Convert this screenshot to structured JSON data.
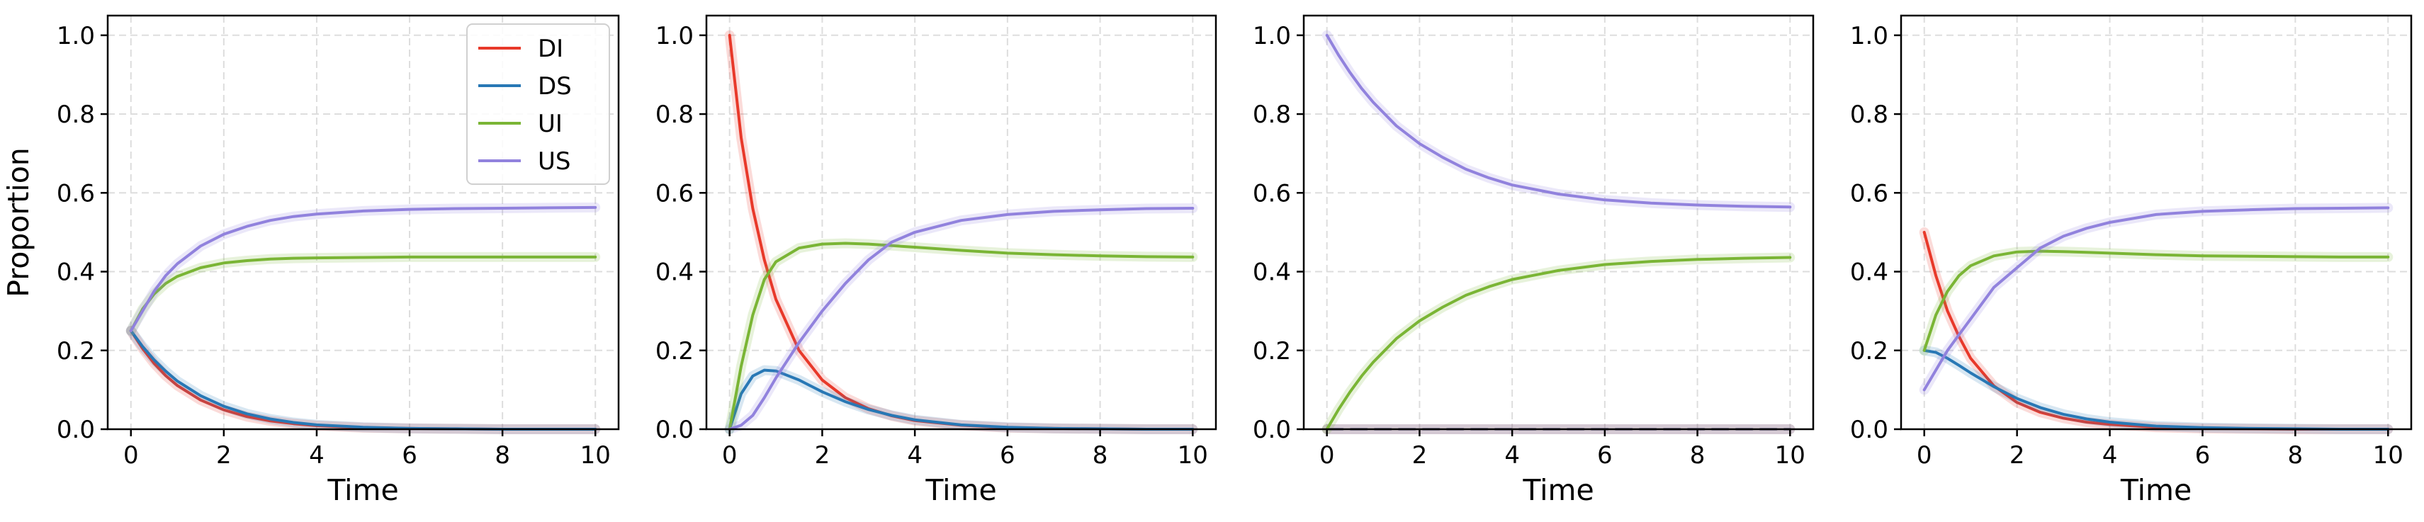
{
  "chart_data": [
    {
      "type": "line",
      "xlabel": "Time",
      "ylabel": "Proportion",
      "xlim": [
        -0.5,
        10.5
      ],
      "ylim": [
        0,
        1.05
      ],
      "xticks": [
        0,
        2,
        4,
        6,
        8,
        10
      ],
      "xtick_labels": [
        "0",
        "2",
        "4",
        "6",
        "8",
        "10"
      ],
      "yticks": [
        0.0,
        0.2,
        0.4,
        0.6,
        0.8,
        1.0
      ],
      "ytick_labels": [
        "0.0",
        "0.2",
        "0.4",
        "0.6",
        "0.8",
        "1.0"
      ],
      "grid": true,
      "legend": {
        "placement": "top-right",
        "entries": [
          "DI",
          "DS",
          "UI",
          "US"
        ]
      },
      "x": [
        0,
        0.25,
        0.5,
        0.75,
        1,
        1.5,
        2,
        2.5,
        3,
        3.5,
        4,
        5,
        6,
        7,
        8,
        9,
        10
      ],
      "series": [
        {
          "name": "DI",
          "color": "#e8392a",
          "values": [
            0.25,
            0.205,
            0.167,
            0.136,
            0.111,
            0.074,
            0.049,
            0.032,
            0.021,
            0.014,
            0.009,
            0.004,
            0.002,
            0.001,
            0.0,
            0.0,
            0.0
          ]
        },
        {
          "name": "DS",
          "color": "#2878b5",
          "values": [
            0.25,
            0.21,
            0.176,
            0.147,
            0.122,
            0.085,
            0.058,
            0.039,
            0.026,
            0.017,
            0.011,
            0.005,
            0.002,
            0.001,
            0.0,
            0.0,
            0.0
          ]
        },
        {
          "name": "UI",
          "color": "#7ab535",
          "values": [
            0.25,
            0.305,
            0.343,
            0.37,
            0.388,
            0.41,
            0.422,
            0.428,
            0.432,
            0.434,
            0.435,
            0.436,
            0.437,
            0.437,
            0.437,
            0.437,
            0.437
          ]
        },
        {
          "name": "US",
          "color": "#9182dd",
          "values": [
            0.25,
            0.3,
            0.35,
            0.39,
            0.42,
            0.465,
            0.495,
            0.515,
            0.53,
            0.54,
            0.546,
            0.554,
            0.558,
            0.56,
            0.561,
            0.562,
            0.563
          ]
        }
      ]
    },
    {
      "type": "line",
      "xlabel": "Time",
      "ylabel": "",
      "xlim": [
        -0.5,
        10.5
      ],
      "ylim": [
        0,
        1.05
      ],
      "xticks": [
        0,
        2,
        4,
        6,
        8,
        10
      ],
      "xtick_labels": [
        "0",
        "2",
        "4",
        "6",
        "8",
        "10"
      ],
      "yticks": [
        0.0,
        0.2,
        0.4,
        0.6,
        0.8,
        1.0
      ],
      "ytick_labels": [
        "0.0",
        "0.2",
        "0.4",
        "0.6",
        "0.8",
        "1.0"
      ],
      "grid": true,
      "x": [
        0,
        0.25,
        0.5,
        0.75,
        1,
        1.5,
        2,
        2.5,
        3,
        3.5,
        4,
        5,
        6,
        7,
        8,
        9,
        10
      ],
      "series": [
        {
          "name": "DI",
          "color": "#e8392a",
          "values": [
            1.0,
            0.74,
            0.56,
            0.43,
            0.33,
            0.2,
            0.125,
            0.08,
            0.052,
            0.034,
            0.022,
            0.01,
            0.004,
            0.002,
            0.001,
            0.0,
            0.0
          ]
        },
        {
          "name": "DS",
          "color": "#2878b5",
          "values": [
            0.0,
            0.09,
            0.135,
            0.15,
            0.148,
            0.125,
            0.095,
            0.07,
            0.05,
            0.035,
            0.024,
            0.011,
            0.005,
            0.002,
            0.001,
            0.0,
            0.0
          ]
        },
        {
          "name": "UI",
          "color": "#7ab535",
          "values": [
            0.0,
            0.16,
            0.29,
            0.38,
            0.425,
            0.46,
            0.47,
            0.472,
            0.47,
            0.466,
            0.462,
            0.454,
            0.447,
            0.443,
            0.44,
            0.438,
            0.437
          ]
        },
        {
          "name": "US",
          "color": "#9182dd",
          "values": [
            0.0,
            0.01,
            0.035,
            0.08,
            0.13,
            0.22,
            0.3,
            0.37,
            0.43,
            0.475,
            0.5,
            0.53,
            0.545,
            0.553,
            0.557,
            0.56,
            0.561
          ]
        }
      ]
    },
    {
      "type": "line",
      "xlabel": "Time",
      "ylabel": "",
      "xlim": [
        -0.5,
        10.5
      ],
      "ylim": [
        0,
        1.05
      ],
      "xticks": [
        0,
        2,
        4,
        6,
        8,
        10
      ],
      "xtick_labels": [
        "0",
        "2",
        "4",
        "6",
        "8",
        "10"
      ],
      "yticks": [
        0.0,
        0.2,
        0.4,
        0.6,
        0.8,
        1.0
      ],
      "ytick_labels": [
        "0.0",
        "0.2",
        "0.4",
        "0.6",
        "0.8",
        "1.0"
      ],
      "grid": true,
      "x": [
        0,
        0.25,
        0.5,
        0.75,
        1,
        1.5,
        2,
        2.5,
        3,
        3.5,
        4,
        5,
        6,
        7,
        8,
        9,
        10
      ],
      "series": [
        {
          "name": "DI",
          "color": "#e8392a",
          "values": [
            0.0,
            0.0,
            0.0,
            0.0,
            0.0,
            0.0,
            0.0,
            0.0,
            0.0,
            0.0,
            0.0,
            0.0,
            0.0,
            0.0,
            0.0,
            0.0,
            0.0
          ]
        },
        {
          "name": "DS",
          "color": "#2878b5",
          "values": [
            0.0,
            0.0,
            0.0,
            0.0,
            0.0,
            0.0,
            0.0,
            0.0,
            0.0,
            0.0,
            0.0,
            0.0,
            0.0,
            0.0,
            0.0,
            0.0,
            0.0
          ]
        },
        {
          "name": "UI",
          "color": "#7ab535",
          "values": [
            0.0,
            0.05,
            0.095,
            0.135,
            0.17,
            0.23,
            0.275,
            0.31,
            0.34,
            0.362,
            0.38,
            0.403,
            0.418,
            0.426,
            0.431,
            0.434,
            0.436
          ]
        },
        {
          "name": "US",
          "color": "#9182dd",
          "values": [
            1.0,
            0.95,
            0.905,
            0.865,
            0.83,
            0.77,
            0.725,
            0.69,
            0.66,
            0.638,
            0.62,
            0.597,
            0.582,
            0.574,
            0.569,
            0.566,
            0.564
          ]
        }
      ]
    },
    {
      "type": "line",
      "xlabel": "Time",
      "ylabel": "",
      "xlim": [
        -0.5,
        10.5
      ],
      "ylim": [
        0,
        1.05
      ],
      "xticks": [
        0,
        2,
        4,
        6,
        8,
        10
      ],
      "xtick_labels": [
        "0",
        "2",
        "4",
        "6",
        "8",
        "10"
      ],
      "yticks": [
        0.0,
        0.2,
        0.4,
        0.6,
        0.8,
        1.0
      ],
      "ytick_labels": [
        "0.0",
        "0.2",
        "0.4",
        "0.6",
        "0.8",
        "1.0"
      ],
      "grid": true,
      "x": [
        0,
        0.25,
        0.5,
        0.75,
        1,
        1.5,
        2,
        2.5,
        3,
        3.5,
        4,
        5,
        6,
        7,
        8,
        9,
        10
      ],
      "series": [
        {
          "name": "DI",
          "color": "#e8392a",
          "values": [
            0.5,
            0.39,
            0.3,
            0.235,
            0.18,
            0.11,
            0.068,
            0.043,
            0.028,
            0.018,
            0.012,
            0.005,
            0.002,
            0.001,
            0.0,
            0.0,
            0.0
          ]
        },
        {
          "name": "DS",
          "color": "#2878b5",
          "values": [
            0.2,
            0.195,
            0.18,
            0.162,
            0.143,
            0.108,
            0.078,
            0.055,
            0.038,
            0.026,
            0.018,
            0.008,
            0.004,
            0.002,
            0.001,
            0.0,
            0.0
          ]
        },
        {
          "name": "UI",
          "color": "#7ab535",
          "values": [
            0.2,
            0.29,
            0.35,
            0.39,
            0.415,
            0.44,
            0.45,
            0.452,
            0.451,
            0.449,
            0.447,
            0.443,
            0.44,
            0.439,
            0.438,
            0.437,
            0.437
          ]
        },
        {
          "name": "US",
          "color": "#9182dd",
          "values": [
            0.1,
            0.15,
            0.2,
            0.24,
            0.28,
            0.36,
            0.41,
            0.46,
            0.49,
            0.51,
            0.525,
            0.545,
            0.553,
            0.557,
            0.56,
            0.561,
            0.562
          ]
        }
      ]
    }
  ]
}
